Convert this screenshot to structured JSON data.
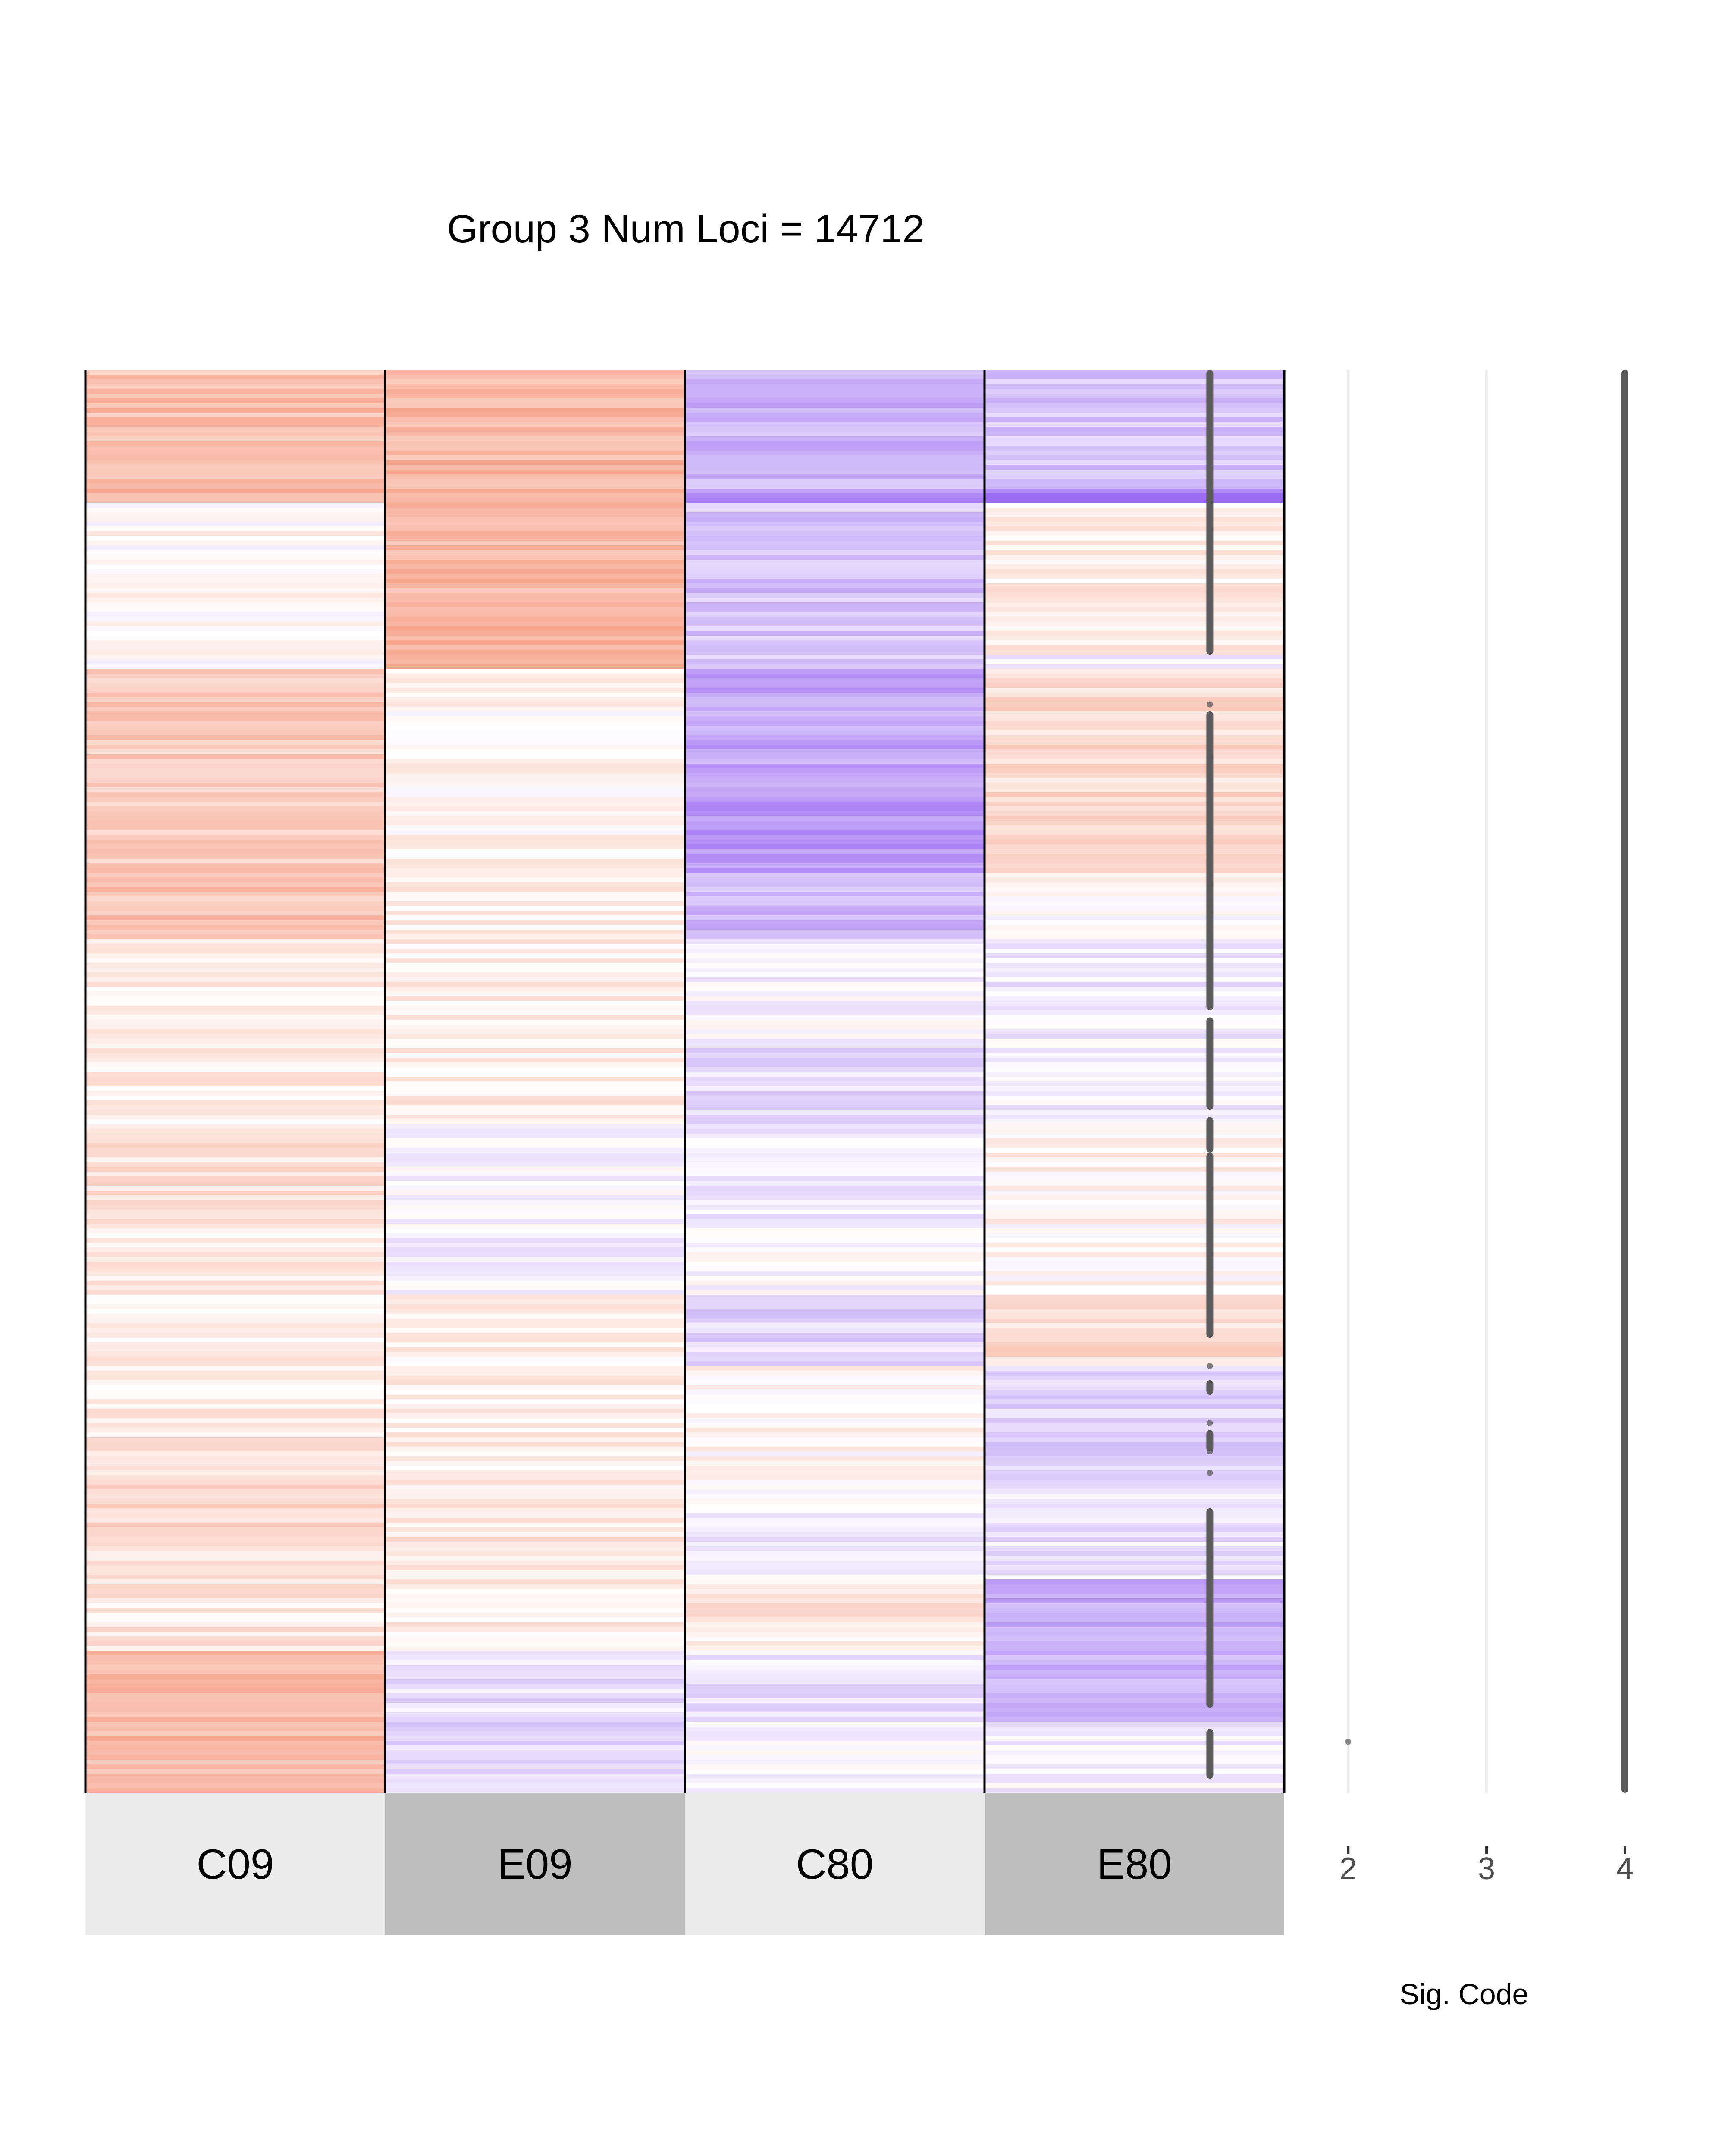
{
  "chart_data": [
    {
      "type": "heatmap",
      "title": "Group 3 Num Loci = 14712",
      "num_loci": 14712,
      "columns": [
        "C09",
        "E09",
        "C80",
        "E80"
      ],
      "column_strip_colors": [
        "#ececec",
        "#bebebe",
        "#ececec",
        "#bebebe"
      ],
      "color_scale": {
        "negative": "#9b6bf2",
        "zero": "#ffffff",
        "positive": "#f4896a",
        "range": [
          -1,
          1
        ]
      },
      "profile_breaks": [
        0,
        0.085,
        0.095,
        0.2,
        0.21,
        0.3,
        0.355,
        0.4,
        0.47,
        0.53,
        0.6,
        0.65,
        0.7,
        0.75,
        0.78,
        0.85,
        0.9,
        0.95,
        1.0
      ],
      "column_profiles": {
        "C09": [
          0.55,
          0.6,
          0.05,
          0.05,
          0.45,
          0.45,
          0.5,
          0.15,
          0.15,
          0.25,
          0.15,
          0.15,
          0.15,
          0.2,
          0.3,
          0.2,
          0.55,
          0.55
        ],
        "E09": [
          0.6,
          0.65,
          0.6,
          0.65,
          0.08,
          0.1,
          0.15,
          0.15,
          0.15,
          -0.08,
          -0.1,
          0.12,
          0.12,
          0.15,
          0.2,
          0.15,
          -0.2,
          -0.3
        ],
        "C80": [
          -0.5,
          -0.7,
          -0.4,
          -0.35,
          -0.6,
          -0.7,
          -0.5,
          -0.05,
          -0.25,
          -0.15,
          -0.05,
          -0.3,
          0.1,
          0.05,
          -0.1,
          0.2,
          -0.2,
          -0.1
        ],
        "E80": [
          -0.4,
          -0.85,
          0.15,
          -0.1,
          0.3,
          0.3,
          0.05,
          -0.15,
          -0.1,
          0.1,
          0.05,
          0.3,
          -0.3,
          -0.3,
          -0.2,
          -0.55,
          -0.5,
          -0.1
        ]
      },
      "sig_code": {
        "axis_title": "Sig. Code",
        "ticks": [
          "2",
          "3",
          "4"
        ],
        "tick_values": [
          2,
          3,
          4
        ],
        "xlim": [
          1.7,
          4.1
        ],
        "sig1_segments": [
          [
            0,
            0.2
          ],
          [
            0.235,
            0.235
          ],
          [
            0.24,
            0.45
          ],
          [
            0.455,
            0.52
          ],
          [
            0.525,
            0.55
          ],
          [
            0.55,
            0.68
          ],
          [
            0.7,
            0.7
          ],
          [
            0.71,
            0.72
          ],
          [
            0.74,
            0.74
          ],
          [
            0.745,
            0.76
          ],
          [
            0.76,
            0.76
          ],
          [
            0.775,
            0.775
          ],
          [
            0.8,
            0.94
          ],
          [
            0.955,
            0.99
          ]
        ],
        "sig2_points": [
          0.964
        ],
        "sig4_segments": [
          [
            0,
            1.0
          ]
        ]
      }
    }
  ]
}
